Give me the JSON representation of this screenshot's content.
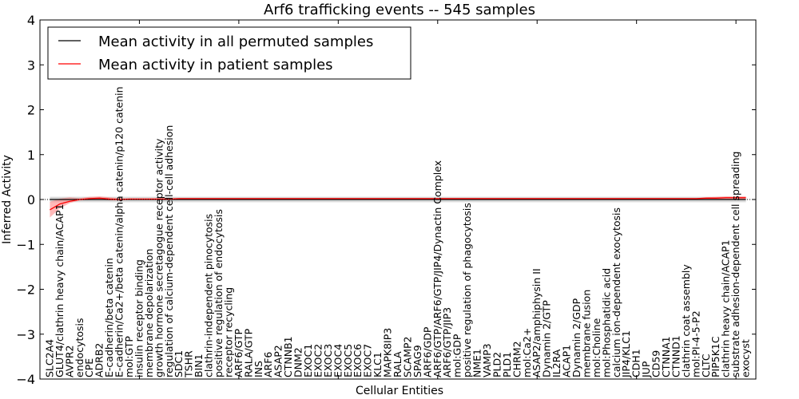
{
  "chart_data": {
    "type": "line",
    "title": "Arf6 trafficking events -- 545 samples",
    "xlabel": "Cellular Entities",
    "ylabel": "Inferred Activity",
    "ylim": [
      -4,
      4
    ],
    "xlim": [
      0,
      72
    ],
    "yticks": [
      -4,
      -3,
      -2,
      -1,
      0,
      1,
      2,
      3,
      4
    ],
    "legend": {
      "placement": "top-left",
      "entries": [
        "Mean activity in all permuted samples",
        "Mean activity in patient samples"
      ]
    },
    "colors": {
      "permuted": "#000000",
      "patient": "#ff0000",
      "permuted_band": "#c8c8c8",
      "patient_band": "#ff8080"
    },
    "categories": [
      "SLC2A4",
      "GLUT4/clathrin heavy chain/ACAP1",
      "AVPR2",
      "endocytosis",
      "CPE",
      "ADRB2",
      "E-cadherin/beta catenin",
      "E-cadherin/Ca2+/beta catenin/alpha catenin/p120 catenin",
      "mol:GTP",
      "insulin receptor binding",
      "membrane depolarization",
      "growth hormone secretagogue receptor activity",
      "regulation of calcium-dependent cell-cell adhesion",
      "SDC1",
      "TSHR",
      "BIN1",
      "clathrin-independent pinocytosis",
      "positive regulation of endocytosis",
      "receptor recycling",
      "ARF6/GTP",
      "RALA/GTP",
      "INS",
      "ARF6",
      "ASAP2",
      "CTNNB1",
      "DNM2",
      "EXOC1",
      "EXOC2",
      "EXOC3",
      "EXOC4",
      "EXOC5",
      "EXOC6",
      "EXOC7",
      "KLC1",
      "MAPK8IP3",
      "RALA",
      "SCAMP2",
      "SPAG9",
      "ARF6/GDP",
      "ARF6/GTP/ARF6/GTP/JIP4/Dynactin Complex",
      "ARF6/GTP/JIP3",
      "mol:GDP",
      "positive regulation of phagocytosis",
      "NME1",
      "VAMP3",
      "PLD2",
      "PLD1",
      "CHRM2",
      "mol:Ca2+",
      "ASAP2/amphiphysin II",
      "Dynamin 2/GTP",
      "IL2RA",
      "ACAP1",
      "Dynamin 2/GDP",
      "membrane fusion",
      "mol:Choline",
      "mol:Phosphatidic acid",
      "calcium ion-dependent exocytosis",
      "JIP4/KLC1",
      "CDH1",
      "JUP",
      "CD59",
      "CTNNA1",
      "CTNND1",
      "clathrin coat assembly",
      "mol:PI-4-5-P2",
      "CLTC",
      "PIP5K1C",
      "clathrin heavy chain/ACAP1",
      "substrate adhesion-dependent cell spreading",
      "exocyst"
    ],
    "series": [
      {
        "name": "Mean activity in all permuted samples",
        "values": "zeros",
        "band": 0.06
      },
      {
        "name": "Mean activity in patient samples",
        "values": [
          -0.23,
          -0.1,
          -0.04,
          0.0,
          0.02,
          0.03,
          0.01,
          0.0,
          0.01,
          0.01,
          0.01,
          0.01,
          0.01,
          0.02,
          0.02,
          0.02,
          0.02,
          0.02,
          0.02,
          0.02,
          0.02,
          0.02,
          0.02,
          0.02,
          0.02,
          0.02,
          0.02,
          0.02,
          0.02,
          0.02,
          0.02,
          0.02,
          0.02,
          0.02,
          0.02,
          0.02,
          0.02,
          0.02,
          0.02,
          0.02,
          0.02,
          0.02,
          0.02,
          0.02,
          0.02,
          0.02,
          0.02,
          0.02,
          0.02,
          0.02,
          0.02,
          0.02,
          0.02,
          0.02,
          0.02,
          0.02,
          0.02,
          0.02,
          0.02,
          0.02,
          0.02,
          0.02,
          0.02,
          0.02,
          0.02,
          0.02,
          0.03,
          0.03,
          0.04,
          0.04,
          0.04
        ],
        "band_low": [
          -0.4,
          -0.2,
          -0.08,
          -0.02,
          -0.01,
          0.0,
          -0.02,
          -0.02,
          0.0,
          0.0,
          0.0,
          0.0,
          0.0,
          0.01,
          0.01,
          0.01,
          0.01,
          0.01,
          0.01,
          0.01,
          0.01,
          0.01,
          0.01,
          0.01,
          0.01,
          0.01,
          0.01,
          0.01,
          0.01,
          0.01,
          0.01,
          0.01,
          0.01,
          0.01,
          0.01,
          0.01,
          0.01,
          0.01,
          0.01,
          0.01,
          0.01,
          0.01,
          0.01,
          0.01,
          0.01,
          0.01,
          0.01,
          0.01,
          0.01,
          0.01,
          0.01,
          0.01,
          0.01,
          0.01,
          0.01,
          0.01,
          0.01,
          0.01,
          0.01,
          0.01,
          0.01,
          0.01,
          0.01,
          0.01,
          0.01,
          0.01,
          0.01,
          0.01,
          0.01,
          0.01,
          0.01
        ],
        "band_high": [
          -0.05,
          0.02,
          0.05,
          0.03,
          0.06,
          0.07,
          0.05,
          0.03,
          0.02,
          0.02,
          0.02,
          0.02,
          0.02,
          0.03,
          0.03,
          0.03,
          0.03,
          0.03,
          0.03,
          0.03,
          0.03,
          0.03,
          0.03,
          0.03,
          0.03,
          0.03,
          0.03,
          0.03,
          0.03,
          0.03,
          0.03,
          0.03,
          0.03,
          0.03,
          0.03,
          0.03,
          0.03,
          0.03,
          0.03,
          0.03,
          0.03,
          0.03,
          0.03,
          0.03,
          0.03,
          0.03,
          0.03,
          0.03,
          0.03,
          0.03,
          0.03,
          0.03,
          0.03,
          0.03,
          0.03,
          0.03,
          0.03,
          0.03,
          0.03,
          0.03,
          0.03,
          0.03,
          0.03,
          0.03,
          0.03,
          0.03,
          0.05,
          0.06,
          0.07,
          0.07,
          0.07
        ]
      }
    ]
  }
}
